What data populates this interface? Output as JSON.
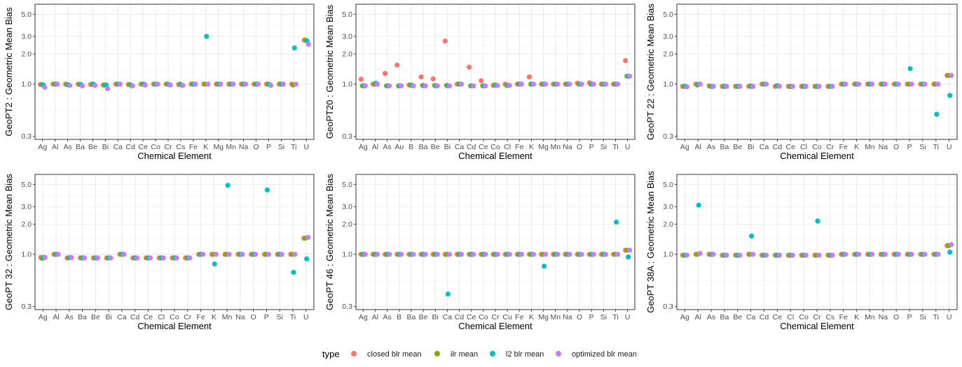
{
  "colors": {
    "closed blr mean": "#F8766D",
    "ilr mean": "#7CAE00",
    "l2 blr mean": "#00BFC4",
    "optimized blr mean": "#C77CFF"
  },
  "legend": {
    "title": "type",
    "items": [
      "closed blr mean",
      "ilr mean",
      "l2 blr mean",
      "optimized blr mean"
    ]
  },
  "chart_data": [
    {
      "type": "scatter",
      "ylabel": "GeoPT2 : Geometric Mean Bias",
      "xlabel": "Chemical Element",
      "y_scale": "log",
      "ylim": [
        0.28,
        6.3
      ],
      "y_ticks": [
        0.3,
        1.0,
        2.0,
        3.0,
        5.0
      ],
      "y_tick_labels": [
        "0.3",
        "1.0",
        "2.0",
        "3.0",
        "5.0"
      ],
      "grid": true,
      "categories": [
        "Ag",
        "Al",
        "As",
        "Ba",
        "Be",
        "Bi",
        "Ca",
        "Cd",
        "Ce",
        "Co",
        "Cr",
        "Cs",
        "Fe",
        "K",
        "Mg",
        "Mn",
        "Na",
        "O",
        "P",
        "Si",
        "Ti",
        "U"
      ],
      "series": [
        {
          "name": "closed blr mean",
          "values": [
            0.99,
            1.0,
            1.0,
            1.0,
            0.99,
            0.98,
            1.0,
            0.99,
            1.0,
            1.0,
            1.0,
            0.99,
            1.0,
            1.0,
            1.0,
            1.0,
            1.0,
            1.0,
            1.0,
            1.0,
            1.0,
            2.75
          ]
        },
        {
          "name": "ilr mean",
          "values": [
            0.99,
            1.0,
            0.99,
            0.99,
            1.0,
            0.98,
            1.0,
            0.99,
            1.0,
            1.0,
            1.0,
            1.0,
            1.0,
            1.0,
            1.0,
            1.0,
            1.0,
            1.0,
            1.0,
            1.0,
            0.98,
            2.75
          ]
        },
        {
          "name": "l2 blr mean",
          "values": [
            0.98,
            1.0,
            0.98,
            0.99,
            1.0,
            0.98,
            1.0,
            0.97,
            1.0,
            1.0,
            0.99,
            0.98,
            1.0,
            3.0,
            1.0,
            1.0,
            1.0,
            1.0,
            0.99,
            1.0,
            2.3,
            2.7
          ]
        },
        {
          "name": "optimized blr mean",
          "values": [
            0.93,
            1.0,
            0.97,
            0.96,
            0.97,
            0.9,
            1.0,
            0.96,
            0.98,
            1.0,
            0.98,
            0.97,
            1.0,
            1.0,
            1.0,
            1.0,
            1.0,
            1.0,
            0.97,
            1.0,
            1.0,
            2.5
          ]
        }
      ]
    },
    {
      "type": "scatter",
      "ylabel": "GeoPT20 : Geometric Mean Bias",
      "xlabel": "Chemical Element",
      "y_scale": "log",
      "ylim": [
        0.28,
        6.3
      ],
      "y_ticks": [
        0.3,
        1.0,
        2.0,
        3.0,
        5.0
      ],
      "y_tick_labels": [
        "0.3",
        "1.0",
        "2.0",
        "3.0",
        "5.0"
      ],
      "grid": true,
      "categories": [
        "Ag",
        "Al",
        "As",
        "Au",
        "B",
        "Ba",
        "Be",
        "Bi",
        "Ca",
        "Cd",
        "Ce",
        "Co",
        "Cl",
        "Fe",
        "K",
        "Mg",
        "Mn",
        "Na",
        "O",
        "P",
        "Si",
        "Ti",
        "U"
      ],
      "series": [
        {
          "name": "closed blr mean",
          "values": [
            1.12,
            1.0,
            1.28,
            1.55,
            0.98,
            1.18,
            1.13,
            2.7,
            1.0,
            1.48,
            1.08,
            0.97,
            1.0,
            1.0,
            1.18,
            1.0,
            1.0,
            1.0,
            1.02,
            1.03,
            1.0,
            1.0,
            1.72
          ]
        },
        {
          "name": "ilr mean",
          "values": [
            0.96,
            1.0,
            0.96,
            0.96,
            0.98,
            0.97,
            0.97,
            0.97,
            1.0,
            0.96,
            0.96,
            0.98,
            0.97,
            1.0,
            1.0,
            1.0,
            1.0,
            1.0,
            1.0,
            1.0,
            1.0,
            1.0,
            1.2
          ]
        },
        {
          "name": "l2 blr mean",
          "values": [
            0.96,
            1.02,
            0.96,
            0.96,
            0.97,
            0.96,
            0.96,
            0.96,
            1.0,
            0.96,
            0.96,
            0.97,
            0.97,
            1.0,
            1.0,
            1.0,
            1.0,
            1.0,
            1.0,
            1.0,
            1.0,
            1.0,
            1.2
          ]
        },
        {
          "name": "optimized blr mean",
          "values": [
            0.96,
            1.0,
            0.96,
            0.96,
            0.96,
            0.96,
            0.96,
            0.96,
            1.0,
            0.96,
            0.96,
            0.97,
            0.97,
            1.0,
            1.0,
            1.0,
            1.0,
            1.0,
            1.0,
            1.0,
            1.0,
            1.0,
            1.2
          ]
        }
      ]
    },
    {
      "type": "scatter",
      "ylabel": "GeoPT 22 : Geometric Mean Bias",
      "xlabel": "Chemical Element",
      "y_scale": "log",
      "ylim": [
        0.28,
        6.3
      ],
      "y_ticks": [
        0.3,
        1.0,
        2.0,
        3.0,
        5.0
      ],
      "y_tick_labels": [
        "0.3",
        "1.0",
        "2.0",
        "3.0",
        "5.0"
      ],
      "grid": true,
      "categories": [
        "Ag",
        "Al",
        "As",
        "Ba",
        "Be",
        "Bi",
        "Ca",
        "Cd",
        "Ce",
        "Cl",
        "Co",
        "Cr",
        "Fe",
        "K",
        "Mn",
        "Na",
        "O",
        "P",
        "Si",
        "Ti",
        "U"
      ],
      "series": [
        {
          "name": "closed blr mean",
          "values": [
            0.95,
            1.0,
            0.96,
            0.95,
            0.95,
            0.95,
            1.0,
            0.95,
            0.95,
            0.95,
            0.95,
            0.95,
            1.0,
            1.0,
            1.0,
            1.0,
            1.0,
            1.0,
            1.0,
            1.0,
            1.22
          ]
        },
        {
          "name": "ilr mean",
          "values": [
            0.95,
            0.98,
            0.95,
            0.95,
            0.95,
            0.96,
            1.0,
            0.96,
            0.95,
            0.95,
            0.95,
            0.95,
            1.0,
            1.0,
            1.0,
            1.0,
            1.0,
            1.0,
            1.0,
            1.0,
            1.22
          ]
        },
        {
          "name": "l2 blr mean",
          "values": [
            0.95,
            1.0,
            0.95,
            0.95,
            0.95,
            0.95,
            1.0,
            0.96,
            0.95,
            0.95,
            0.95,
            0.95,
            1.0,
            1.0,
            1.0,
            1.0,
            1.0,
            1.43,
            1.0,
            0.5,
            0.77
          ]
        },
        {
          "name": "optimized blr mean",
          "values": [
            0.94,
            1.0,
            0.95,
            0.95,
            0.95,
            0.95,
            1.0,
            0.95,
            0.95,
            0.95,
            0.95,
            0.95,
            1.0,
            1.0,
            1.0,
            1.0,
            1.0,
            1.0,
            1.0,
            1.0,
            1.22
          ]
        }
      ]
    },
    {
      "type": "scatter",
      "ylabel": "GeoPT 32 : Geometric Mean Bias",
      "xlabel": "Chemical Element",
      "y_scale": "log",
      "ylim": [
        0.28,
        6.3
      ],
      "y_ticks": [
        0.3,
        1.0,
        2.0,
        3.0,
        5.0
      ],
      "y_tick_labels": [
        "0.3",
        "1.0",
        "2.0",
        "3.0",
        "5.0"
      ],
      "grid": true,
      "categories": [
        "Ag",
        "Al",
        "As",
        "Ba",
        "Be",
        "Bi",
        "Ca",
        "Cd",
        "Ce",
        "Cl",
        "Co",
        "Cr",
        "Fe",
        "K",
        "Mn",
        "Na",
        "O",
        "P",
        "Si",
        "Ti",
        "U"
      ],
      "series": [
        {
          "name": "closed blr mean",
          "values": [
            0.93,
            1.0,
            0.92,
            0.92,
            0.92,
            0.92,
            1.0,
            0.92,
            0.92,
            0.92,
            0.92,
            0.92,
            1.0,
            1.0,
            1.0,
            1.0,
            1.0,
            1.0,
            1.0,
            1.0,
            1.45
          ]
        },
        {
          "name": "ilr mean",
          "values": [
            0.91,
            1.0,
            0.92,
            0.92,
            0.92,
            0.92,
            1.0,
            0.92,
            0.92,
            0.92,
            0.92,
            0.92,
            1.0,
            1.0,
            1.0,
            1.0,
            1.0,
            1.0,
            1.0,
            1.0,
            1.45
          ]
        },
        {
          "name": "l2 blr mean",
          "values": [
            0.93,
            1.0,
            0.93,
            0.92,
            0.92,
            0.92,
            1.0,
            0.92,
            0.92,
            0.92,
            0.92,
            0.92,
            1.0,
            0.8,
            4.9,
            1.0,
            1.0,
            4.4,
            1.0,
            0.66,
            0.9
          ]
        },
        {
          "name": "optimized blr mean",
          "values": [
            0.93,
            1.0,
            0.93,
            0.92,
            0.92,
            0.92,
            1.0,
            0.92,
            0.92,
            0.92,
            0.92,
            0.92,
            1.0,
            1.0,
            1.0,
            1.0,
            1.0,
            1.0,
            1.0,
            1.0,
            1.48
          ]
        }
      ]
    },
    {
      "type": "scatter",
      "ylabel": "GeoPT 46 : Geometric Mean Bias",
      "xlabel": "Chemical Element",
      "y_scale": "log",
      "ylim": [
        0.28,
        6.3
      ],
      "y_ticks": [
        0.3,
        1.0,
        2.0,
        3.0,
        5.0
      ],
      "y_tick_labels": [
        "0.3",
        "1.0",
        "2.0",
        "3.0",
        "5.0"
      ],
      "grid": true,
      "categories": [
        "Ag",
        "Al",
        "As",
        "B",
        "Ba",
        "Be",
        "Bi",
        "Ca",
        "Cd",
        "Ce",
        "Co",
        "Cr",
        "Cu",
        "Fe",
        "K",
        "Mg",
        "Mn",
        "Na",
        "O",
        "P",
        "Si",
        "Ti",
        "U"
      ],
      "series": [
        {
          "name": "closed blr mean",
          "values": [
            1.0,
            1.0,
            1.0,
            1.0,
            1.0,
            1.0,
            1.0,
            1.0,
            1.0,
            1.0,
            1.0,
            1.0,
            1.0,
            1.0,
            1.0,
            1.0,
            1.0,
            1.0,
            1.0,
            1.0,
            1.0,
            1.0,
            1.1
          ]
        },
        {
          "name": "ilr mean",
          "values": [
            1.0,
            1.0,
            1.0,
            1.0,
            1.0,
            1.0,
            1.0,
            1.0,
            1.0,
            1.0,
            1.0,
            1.0,
            1.0,
            1.0,
            1.0,
            1.0,
            1.0,
            1.0,
            1.0,
            1.0,
            1.0,
            1.0,
            1.1
          ]
        },
        {
          "name": "l2 blr mean",
          "values": [
            1.0,
            1.0,
            1.0,
            1.0,
            1.0,
            1.0,
            1.0,
            0.4,
            1.0,
            1.0,
            1.0,
            1.0,
            1.0,
            1.0,
            1.0,
            0.76,
            1.0,
            1.0,
            1.0,
            1.0,
            1.0,
            2.1,
            0.94
          ]
        },
        {
          "name": "optimized blr mean",
          "values": [
            1.0,
            1.0,
            1.0,
            1.0,
            1.0,
            1.0,
            1.0,
            1.0,
            1.0,
            1.0,
            1.0,
            1.0,
            1.0,
            1.0,
            1.0,
            1.0,
            1.0,
            1.0,
            1.0,
            1.0,
            1.0,
            1.0,
            1.1
          ]
        }
      ]
    },
    {
      "type": "scatter",
      "ylabel": "GeoPT 38A : Geometric Mean Bias",
      "xlabel": "Chemical Element",
      "y_scale": "log",
      "ylim": [
        0.28,
        6.3
      ],
      "y_ticks": [
        0.3,
        1.0,
        2.0,
        3.0,
        5.0
      ],
      "y_tick_labels": [
        "0.3",
        "1.0",
        "2.0",
        "3.0",
        "5.0"
      ],
      "grid": true,
      "categories": [
        "Ag",
        "Al",
        "As",
        "Ba",
        "Be",
        "Ca",
        "Cd",
        "Ce",
        "Cl",
        "Co",
        "Cr",
        "Cs",
        "Fe",
        "K",
        "Mn",
        "Na",
        "O",
        "P",
        "Si",
        "Ti",
        "U"
      ],
      "series": [
        {
          "name": "closed blr mean",
          "values": [
            0.98,
            1.0,
            1.0,
            0.98,
            0.98,
            1.0,
            0.98,
            0.98,
            0.98,
            0.98,
            0.98,
            0.98,
            1.0,
            1.0,
            1.0,
            1.0,
            1.0,
            1.0,
            1.0,
            1.0,
            1.22
          ]
        },
        {
          "name": "ilr mean",
          "values": [
            0.98,
            1.0,
            1.0,
            0.98,
            0.98,
            1.0,
            0.98,
            0.98,
            0.98,
            0.98,
            0.98,
            0.98,
            1.0,
            1.0,
            1.0,
            1.0,
            1.0,
            1.0,
            1.0,
            1.0,
            1.22
          ]
        },
        {
          "name": "l2 blr mean",
          "values": [
            0.98,
            3.1,
            1.0,
            0.98,
            0.98,
            1.52,
            0.98,
            0.98,
            0.98,
            0.98,
            2.15,
            0.98,
            1.0,
            1.0,
            1.0,
            1.0,
            1.0,
            1.0,
            1.0,
            1.0,
            1.05
          ]
        },
        {
          "name": "optimized blr mean",
          "values": [
            0.98,
            1.02,
            1.0,
            0.98,
            0.98,
            1.0,
            0.98,
            0.98,
            0.98,
            0.98,
            0.98,
            0.98,
            1.0,
            1.0,
            1.0,
            1.0,
            1.0,
            1.0,
            1.0,
            1.0,
            1.25
          ]
        }
      ]
    }
  ]
}
